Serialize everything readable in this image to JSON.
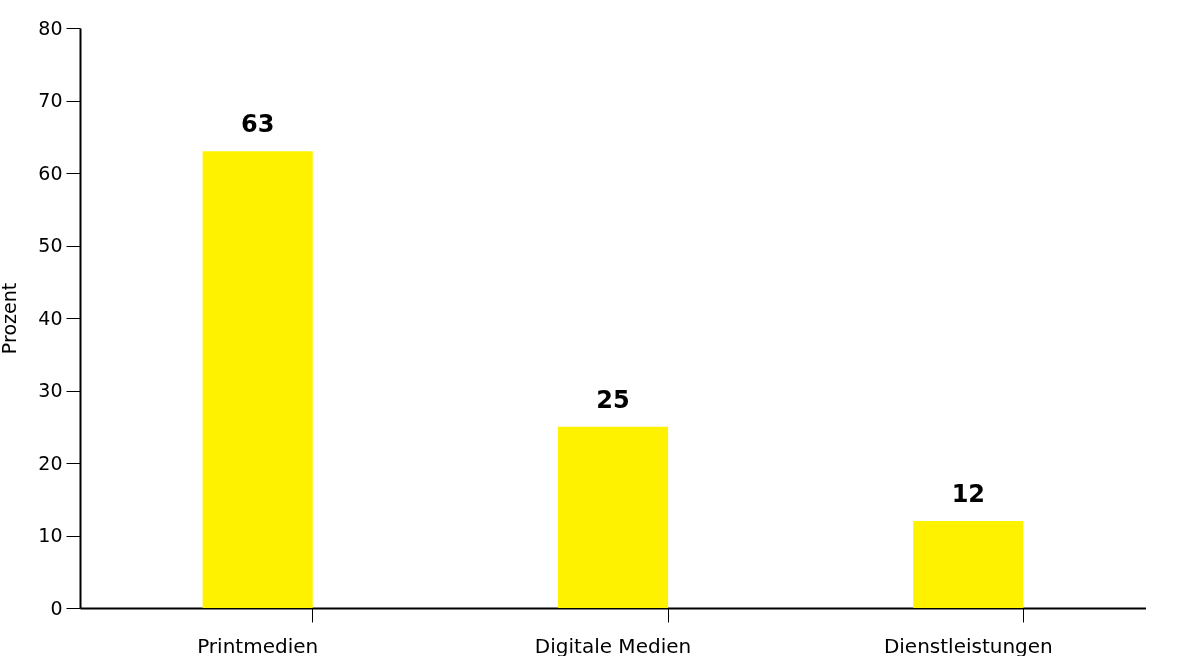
{
  "chart_data": {
    "type": "bar",
    "ylabel": "Prozent",
    "categories": [
      "Printmedien",
      "Digitale Medien",
      "Dienstleistungen"
    ],
    "values": [
      63,
      25,
      12
    ],
    "color": "#fff200",
    "ylim": [
      0,
      80
    ],
    "yticks": [
      0,
      10,
      20,
      30,
      40,
      50,
      60,
      70,
      80
    ],
    "grid": false,
    "data_labels": true
  }
}
